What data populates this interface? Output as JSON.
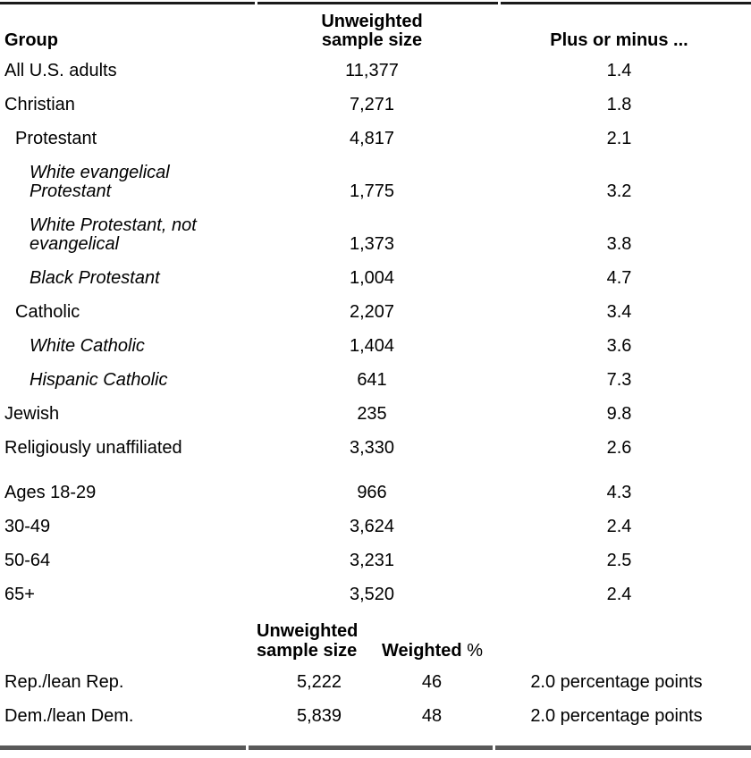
{
  "page": {
    "background": "#ffffff",
    "text_color": "#000000",
    "top_rule_color": "#1a1a1a",
    "bottom_rule_color": "#595959"
  },
  "main_table": {
    "headers": {
      "group": "Group",
      "sample_size": "Unweighted\nsample size",
      "plus_minus": "Plus or minus ..."
    },
    "rows": [
      {
        "group": "All U.S. adults",
        "sample_size": "11,377",
        "plus_minus": "1.4",
        "indent": 0,
        "italic": false,
        "two_line": false,
        "section_break": false
      },
      {
        "group": "Christian",
        "sample_size": "7,271",
        "plus_minus": "1.8",
        "indent": 0,
        "italic": false,
        "two_line": false,
        "section_break": false
      },
      {
        "group": "Protestant",
        "sample_size": "4,817",
        "plus_minus": "2.1",
        "indent": 1,
        "italic": false,
        "two_line": false,
        "section_break": false
      },
      {
        "group": "White evangelical\nProtestant",
        "sample_size": "1,775",
        "plus_minus": "3.2",
        "indent": 2,
        "italic": true,
        "two_line": true,
        "section_break": false
      },
      {
        "group": "White Protestant, not\nevangelical",
        "sample_size": "1,373",
        "plus_minus": "3.8",
        "indent": 2,
        "italic": true,
        "two_line": true,
        "section_break": false
      },
      {
        "group": "Black Protestant",
        "sample_size": "1,004",
        "plus_minus": "4.7",
        "indent": 2,
        "italic": true,
        "two_line": false,
        "section_break": false
      },
      {
        "group": "Catholic",
        "sample_size": "2,207",
        "plus_minus": "3.4",
        "indent": 1,
        "italic": false,
        "two_line": false,
        "section_break": false
      },
      {
        "group": "White Catholic",
        "sample_size": "1,404",
        "plus_minus": "3.6",
        "indent": 2,
        "italic": true,
        "two_line": false,
        "section_break": false
      },
      {
        "group": "Hispanic Catholic",
        "sample_size": "641",
        "plus_minus": "7.3",
        "indent": 2,
        "italic": true,
        "two_line": false,
        "section_break": false
      },
      {
        "group": "Jewish",
        "sample_size": "235",
        "plus_minus": "9.8",
        "indent": 0,
        "italic": false,
        "two_line": false,
        "section_break": false
      },
      {
        "group": "Religiously unaffiliated",
        "sample_size": "3,330",
        "plus_minus": "2.6",
        "indent": 0,
        "italic": false,
        "two_line": false,
        "section_break": false
      },
      {
        "group": "Ages 18-29",
        "sample_size": "966",
        "plus_minus": "4.3",
        "indent": 0,
        "italic": false,
        "two_line": false,
        "section_break": true
      },
      {
        "group": "30-49",
        "sample_size": "3,624",
        "plus_minus": "2.4",
        "indent": 0,
        "italic": false,
        "two_line": false,
        "section_break": false
      },
      {
        "group": "50-64",
        "sample_size": "3,231",
        "plus_minus": "2.5",
        "indent": 0,
        "italic": false,
        "two_line": false,
        "section_break": false
      },
      {
        "group": "65+",
        "sample_size": "3,520",
        "plus_minus": "2.4",
        "indent": 0,
        "italic": false,
        "two_line": false,
        "section_break": false
      }
    ]
  },
  "party_table": {
    "headers": {
      "sample_size": "Unweighted\nsample size",
      "weighted": "Weighted",
      "percent_sign": "%"
    },
    "rows": [
      {
        "group": "Rep./lean Rep.",
        "sample_size": "5,222",
        "weighted_pct": "46",
        "plus_minus": "2.0 percentage points"
      },
      {
        "group": "Dem./lean Dem.",
        "sample_size": "5,839",
        "weighted_pct": "48",
        "plus_minus": "2.0 percentage points"
      }
    ]
  }
}
